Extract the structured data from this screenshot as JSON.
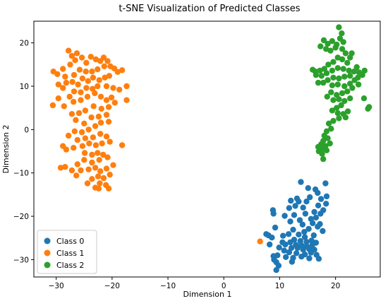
{
  "chart_data": {
    "type": "scatter",
    "title": "t-SNE Visualization of Predicted Classes",
    "xlabel": "Dimension 1",
    "ylabel": "Dimension 2",
    "xlim": [
      -34,
      28
    ],
    "ylim": [
      -34,
      25
    ],
    "xticks": [
      -30,
      -20,
      -10,
      0,
      10,
      20
    ],
    "yticks": [
      -30,
      -20,
      -10,
      0,
      10,
      20
    ],
    "grid": false,
    "legend_position": "lower-left",
    "series": [
      {
        "name": "Class 0",
        "color": "#1f77b4",
        "points": [
          [
            13.8,
            -12.1
          ],
          [
            15.1,
            -13.5
          ],
          [
            16.4,
            -13.8
          ],
          [
            18.2,
            -12.4
          ],
          [
            16.8,
            -14.6
          ],
          [
            15.4,
            -15.6
          ],
          [
            13.1,
            -15.9
          ],
          [
            12.0,
            -16.4
          ],
          [
            12.8,
            -17.6
          ],
          [
            14.2,
            -18.0
          ],
          [
            16.9,
            -17.5
          ],
          [
            17.8,
            -18.6
          ],
          [
            18.3,
            -17.1
          ],
          [
            17.3,
            -19.4
          ],
          [
            16.2,
            -19.0
          ],
          [
            15.6,
            -20.6
          ],
          [
            14.6,
            -19.4
          ],
          [
            13.6,
            -20.9
          ],
          [
            12.6,
            -19.7
          ],
          [
            11.9,
            -21.2
          ],
          [
            14.1,
            -21.9
          ],
          [
            15.9,
            -21.6
          ],
          [
            15.2,
            -22.9
          ],
          [
            14.4,
            -23.6
          ],
          [
            12.4,
            -23.1
          ],
          [
            11.6,
            -24.1
          ],
          [
            13.4,
            -24.2
          ],
          [
            14.5,
            -24.8
          ],
          [
            16.1,
            -24.4
          ],
          [
            15.7,
            -25.6
          ],
          [
            14.8,
            -25.9
          ],
          [
            13.7,
            -25.7
          ],
          [
            12.6,
            -25.4
          ],
          [
            11.9,
            -26.0
          ],
          [
            12.9,
            -26.6
          ],
          [
            13.9,
            -26.7
          ],
          [
            14.8,
            -26.9
          ],
          [
            15.8,
            -26.7
          ],
          [
            16.5,
            -26.1
          ],
          [
            13.2,
            -27.3
          ],
          [
            14.2,
            -27.7
          ],
          [
            15.3,
            -27.6
          ],
          [
            16.2,
            -27.7
          ],
          [
            12.1,
            -27.3
          ],
          [
            11.0,
            -26.5
          ],
          [
            10.5,
            -26.0
          ],
          [
            9.9,
            -27.2
          ],
          [
            10.8,
            -27.9
          ],
          [
            11.7,
            -28.3
          ],
          [
            13.0,
            -28.5
          ],
          [
            14.5,
            -28.8
          ],
          [
            15.6,
            -28.4
          ],
          [
            16.6,
            -28.9
          ],
          [
            17.0,
            -29.8
          ],
          [
            15.3,
            -29.7
          ],
          [
            13.9,
            -29.3
          ],
          [
            12.4,
            -29.6
          ],
          [
            11.1,
            -29.4
          ],
          [
            9.6,
            -29.0
          ],
          [
            9.0,
            -30.0
          ],
          [
            8.9,
            -29.2
          ],
          [
            9.4,
            -30.6
          ],
          [
            9.8,
            -31.4
          ],
          [
            9.4,
            -32.4
          ],
          [
            12.2,
            -30.5
          ],
          [
            10.6,
            -24.5
          ],
          [
            9.2,
            -22.6
          ],
          [
            8.9,
            -19.4
          ],
          [
            8.8,
            -18.6
          ],
          [
            10.9,
            -19.9
          ],
          [
            11.7,
            -18.1
          ],
          [
            13.4,
            -16.6
          ],
          [
            14.8,
            -16.6
          ],
          [
            17.4,
            -16.0
          ],
          [
            18.4,
            -15.4
          ],
          [
            16.5,
            -20.3
          ],
          [
            17.2,
            -21.8
          ],
          [
            17.7,
            -23.4
          ],
          [
            16.8,
            -22.4
          ],
          [
            8.0,
            -24.4
          ],
          [
            8.6,
            -24.9
          ],
          [
            7.6,
            -24.1
          ],
          [
            8.2,
            -26.5
          ]
        ]
      },
      {
        "name": "Class 1",
        "color": "#ff7f0e",
        "points": [
          [
            -30.5,
            13.4
          ],
          [
            -29.8,
            12.8
          ],
          [
            -28.8,
            14.0
          ],
          [
            -27.5,
            15.0
          ],
          [
            -26.6,
            16.0
          ],
          [
            -27.2,
            17.0
          ],
          [
            -27.8,
            18.2
          ],
          [
            -26.3,
            17.6
          ],
          [
            -25.4,
            16.6
          ],
          [
            -24.6,
            15.4
          ],
          [
            -23.8,
            16.8
          ],
          [
            -22.9,
            16.2
          ],
          [
            -22.1,
            15.8
          ],
          [
            -21.5,
            16.6
          ],
          [
            -20.8,
            15.8
          ],
          [
            -20.3,
            14.6
          ],
          [
            -19.6,
            14.1
          ],
          [
            -19.0,
            13.3
          ],
          [
            -18.2,
            13.7
          ],
          [
            -21.4,
            14.6
          ],
          [
            -22.6,
            13.9
          ],
          [
            -23.6,
            13.4
          ],
          [
            -24.7,
            13.4
          ],
          [
            -25.8,
            13.8
          ],
          [
            -26.8,
            12.6
          ],
          [
            -28.4,
            12.2
          ],
          [
            -29.6,
            10.4
          ],
          [
            -28.8,
            9.6
          ],
          [
            -28.2,
            10.8
          ],
          [
            -27.1,
            11.0
          ],
          [
            -26.1,
            10.4
          ],
          [
            -25.3,
            11.8
          ],
          [
            -24.3,
            11.2
          ],
          [
            -23.4,
            12.0
          ],
          [
            -22.3,
            11.4
          ],
          [
            -21.3,
            12.0
          ],
          [
            -20.5,
            12.4
          ],
          [
            -17.4,
            10.0
          ],
          [
            -18.7,
            9.2
          ],
          [
            -19.8,
            9.6
          ],
          [
            -21.0,
            10.0
          ],
          [
            -22.6,
            10.0
          ],
          [
            -23.5,
            9.4
          ],
          [
            -24.6,
            9.6
          ],
          [
            -25.6,
            8.6
          ],
          [
            -26.8,
            8.8
          ],
          [
            -27.6,
            7.6
          ],
          [
            -29.6,
            7.2
          ],
          [
            -30.6,
            5.6
          ],
          [
            -28.6,
            5.4
          ],
          [
            -26.9,
            6.4
          ],
          [
            -25.6,
            6.8
          ],
          [
            -24.4,
            7.6
          ],
          [
            -23.1,
            8.4
          ],
          [
            -22.0,
            7.6
          ],
          [
            -21.0,
            6.8
          ],
          [
            -20.1,
            7.4
          ],
          [
            -19.5,
            6.2
          ],
          [
            -17.4,
            6.8
          ],
          [
            -20.6,
            5.2
          ],
          [
            -21.9,
            4.8
          ],
          [
            -23.3,
            5.4
          ],
          [
            -24.8,
            4.4
          ],
          [
            -25.9,
            3.8
          ],
          [
            -27.2,
            3.6
          ],
          [
            -26.5,
            2.2
          ],
          [
            -25.0,
            1.4
          ],
          [
            -23.7,
            2.8
          ],
          [
            -22.4,
            3.0
          ],
          [
            -21.0,
            3.4
          ],
          [
            -20.6,
            1.8
          ],
          [
            -22.0,
            1.6
          ],
          [
            -23.0,
            0.8
          ],
          [
            -24.2,
            0.0
          ],
          [
            -25.4,
            -0.6
          ],
          [
            -26.7,
            -0.4
          ],
          [
            -27.8,
            -1.4
          ],
          [
            -26.2,
            -2.4
          ],
          [
            -24.8,
            -2.0
          ],
          [
            -23.4,
            -1.8
          ],
          [
            -22.1,
            -1.0
          ],
          [
            -21.0,
            -1.6
          ],
          [
            -20.4,
            -2.8
          ],
          [
            -21.8,
            -3.2
          ],
          [
            -22.9,
            -3.6
          ],
          [
            -24.1,
            -3.2
          ],
          [
            -25.3,
            -3.8
          ],
          [
            -26.9,
            -4.2
          ],
          [
            -28.2,
            -4.6
          ],
          [
            -28.8,
            -3.8
          ],
          [
            -24.9,
            -5.4
          ],
          [
            -23.6,
            -5.8
          ],
          [
            -22.6,
            -5.4
          ],
          [
            -21.6,
            -5.8
          ],
          [
            -20.8,
            -6.4
          ],
          [
            -22.3,
            -7.0
          ],
          [
            -23.6,
            -7.6
          ],
          [
            -25.0,
            -7.0
          ],
          [
            -26.2,
            -8.0
          ],
          [
            -25.6,
            -9.4
          ],
          [
            -24.2,
            -9.2
          ],
          [
            -23.0,
            -8.8
          ],
          [
            -22.1,
            -9.6
          ],
          [
            -21.0,
            -9.0
          ],
          [
            -20.4,
            -10.4
          ],
          [
            -21.5,
            -11.2
          ],
          [
            -22.5,
            -10.8
          ],
          [
            -23.6,
            -11.4
          ],
          [
            -22.2,
            -12.4
          ],
          [
            -21.1,
            -12.8
          ],
          [
            -20.6,
            -13.6
          ],
          [
            -22.4,
            -13.6
          ],
          [
            -27.2,
            -9.4
          ],
          [
            -28.4,
            -8.6
          ],
          [
            -29.2,
            -8.8
          ],
          [
            -26.4,
            -10.6
          ],
          [
            -24.4,
            -12.4
          ],
          [
            -23.0,
            -13.4
          ],
          [
            -19.8,
            -8.2
          ],
          [
            -18.2,
            -3.6
          ],
          [
            6.5,
            -25.8
          ]
        ]
      },
      {
        "name": "Class 2",
        "color": "#2ca02c",
        "points": [
          [
            20.6,
            23.6
          ],
          [
            21.1,
            22.2
          ],
          [
            20.8,
            21.0
          ],
          [
            21.4,
            20.2
          ],
          [
            20.2,
            19.6
          ],
          [
            19.4,
            20.4
          ],
          [
            18.6,
            19.8
          ],
          [
            17.9,
            20.6
          ],
          [
            17.3,
            19.2
          ],
          [
            18.3,
            18.6
          ],
          [
            19.1,
            18.2
          ],
          [
            20.0,
            18.9
          ],
          [
            21.2,
            18.6
          ],
          [
            21.8,
            17.6
          ],
          [
            22.6,
            16.6
          ],
          [
            22.1,
            15.4
          ],
          [
            21.2,
            16.2
          ],
          [
            20.4,
            16.6
          ],
          [
            19.6,
            15.6
          ],
          [
            18.7,
            15.0
          ],
          [
            18.0,
            14.0
          ],
          [
            17.2,
            13.6
          ],
          [
            16.4,
            13.4
          ],
          [
            15.9,
            13.8
          ],
          [
            16.5,
            12.6
          ],
          [
            17.5,
            12.4
          ],
          [
            18.4,
            13.0
          ],
          [
            19.4,
            13.6
          ],
          [
            20.4,
            14.2
          ],
          [
            21.4,
            14.0
          ],
          [
            22.4,
            13.6
          ],
          [
            23.3,
            13.4
          ],
          [
            24.2,
            13.2
          ],
          [
            24.8,
            12.6
          ],
          [
            25.2,
            13.6
          ],
          [
            23.8,
            14.4
          ],
          [
            22.6,
            12.4
          ],
          [
            21.6,
            12.2
          ],
          [
            20.6,
            11.8
          ],
          [
            19.6,
            12.0
          ],
          [
            18.6,
            11.4
          ],
          [
            17.8,
            10.8
          ],
          [
            16.9,
            10.8
          ],
          [
            19.4,
            10.2
          ],
          [
            20.4,
            10.4
          ],
          [
            21.6,
            10.0
          ],
          [
            22.6,
            10.6
          ],
          [
            23.4,
            11.4
          ],
          [
            24.1,
            10.4
          ],
          [
            23.0,
            9.6
          ],
          [
            22.1,
            8.8
          ],
          [
            21.2,
            8.4
          ],
          [
            20.2,
            8.0
          ],
          [
            19.2,
            8.6
          ],
          [
            18.5,
            7.6
          ],
          [
            19.6,
            6.8
          ],
          [
            20.6,
            7.0
          ],
          [
            21.6,
            6.6
          ],
          [
            22.6,
            7.2
          ],
          [
            25.1,
            7.2
          ],
          [
            26.0,
            5.2
          ],
          [
            25.8,
            4.8
          ],
          [
            21.0,
            5.6
          ],
          [
            20.2,
            5.0
          ],
          [
            19.4,
            4.4
          ],
          [
            20.4,
            3.8
          ],
          [
            21.4,
            3.6
          ],
          [
            22.2,
            4.2
          ],
          [
            21.8,
            2.8
          ],
          [
            20.6,
            2.6
          ],
          [
            19.6,
            2.0
          ],
          [
            18.8,
            1.4
          ],
          [
            19.2,
            0.2
          ],
          [
            18.4,
            -0.4
          ],
          [
            18.0,
            -1.4
          ],
          [
            18.6,
            -2.0
          ],
          [
            17.8,
            -2.6
          ],
          [
            17.4,
            -3.4
          ],
          [
            18.2,
            -3.8
          ],
          [
            17.6,
            -4.4
          ],
          [
            17.0,
            -5.0
          ],
          [
            17.6,
            -5.6
          ],
          [
            18.4,
            -4.8
          ],
          [
            19.0,
            -3.2
          ],
          [
            17.8,
            -6.8
          ],
          [
            16.9,
            -4.0
          ],
          [
            22.9,
            17.6
          ],
          [
            24.0,
            12.0
          ]
        ]
      }
    ]
  }
}
